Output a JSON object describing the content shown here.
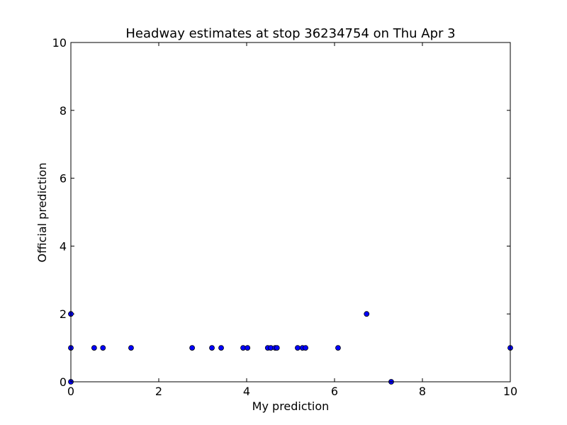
{
  "chart_data": {
    "type": "scatter",
    "title": "Headway estimates at stop 36234754 on Thu Apr 3",
    "x_label": "My prediction",
    "y_label": "Official prediction",
    "x": [
      0,
      0,
      0,
      0.53,
      0.73,
      1.37,
      2.76,
      3.21,
      3.42,
      3.92,
      4.02,
      4.48,
      4.55,
      4.65,
      4.69,
      5.16,
      5.27,
      5.34,
      6.08,
      6.73,
      7.29,
      10
    ],
    "values": [
      2,
      1,
      0,
      1,
      1,
      1,
      1,
      1,
      1,
      1,
      1,
      1,
      1,
      1,
      1,
      1,
      1,
      1,
      1,
      2,
      0,
      1
    ],
    "color": "#0000ff",
    "xlim": [
      0,
      10
    ],
    "ylim": [
      0,
      10
    ],
    "xticks": [
      0,
      2,
      4,
      6,
      8,
      10
    ],
    "yticks": [
      0,
      2,
      4,
      6,
      8,
      10
    ]
  }
}
